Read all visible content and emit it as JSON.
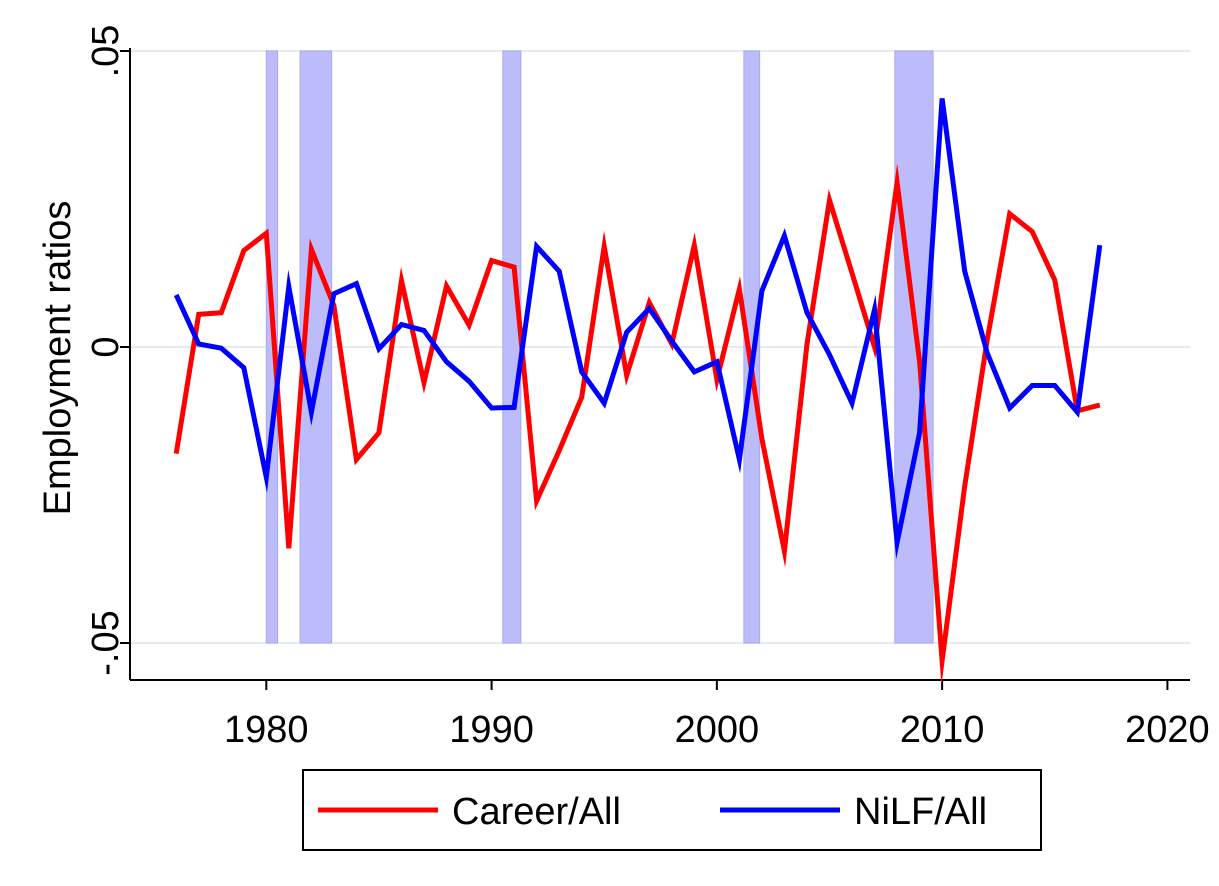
{
  "chart_data": {
    "type": "line",
    "title": "",
    "xlabel": "",
    "ylabel": "Employment ratios",
    "xlim": [
      1976,
      2020
    ],
    "ylim": [
      -0.05,
      0.05
    ],
    "x_ticks": [
      1980,
      1990,
      2000,
      2010,
      2020
    ],
    "x_tick_labels": [
      "1980",
      "1990",
      "2000",
      "2010",
      "2020"
    ],
    "y_ticks": [
      -0.05,
      0,
      0.05
    ],
    "y_tick_labels": [
      "-.05",
      "0",
      ".05"
    ],
    "grid": "horizontal",
    "legend_position": "bottom",
    "recession_color": "#bcbcfa",
    "recessions": [
      [
        1980.0,
        1980.5
      ],
      [
        1981.5,
        1982.9
      ],
      [
        1990.5,
        1991.3
      ],
      [
        2001.2,
        2001.9
      ],
      [
        2007.9,
        2009.6
      ]
    ],
    "x": [
      1976,
      1977,
      1978,
      1979,
      1980,
      1981,
      1982,
      1983,
      1984,
      1985,
      1986,
      1987,
      1988,
      1989,
      1990,
      1991,
      1992,
      1993,
      1994,
      1995,
      1996,
      1997,
      1998,
      1999,
      2000,
      2001,
      2002,
      2003,
      2004,
      2005,
      2006,
      2007,
      2008,
      2009,
      2010,
      2011,
      2012,
      2013,
      2014,
      2015,
      2016,
      2017
    ],
    "series": [
      {
        "name": "Career/All",
        "color": "#ff0000",
        "values": [
          -0.018,
          0.0055,
          0.0058,
          0.0163,
          0.0192,
          -0.034,
          0.0165,
          0.007,
          -0.019,
          -0.0145,
          0.0112,
          -0.006,
          0.0103,
          0.0037,
          0.0146,
          0.0135,
          -0.026,
          -0.0175,
          -0.0085,
          0.017,
          -0.0048,
          0.0075,
          0.0005,
          0.0172,
          -0.0055,
          0.0098,
          -0.0155,
          -0.0345,
          0.0005,
          0.0248,
          0.0125,
          0,
          0.0278,
          -0.0025,
          -0.053,
          -0.0235,
          0.0012,
          0.0225,
          0.0195,
          0.0113,
          -0.0108,
          -0.0098
        ]
      },
      {
        "name": "NiLF/All",
        "color": "#0000ff",
        "values": [
          0.0088,
          0.0005,
          -0.0002,
          -0.0035,
          -0.022,
          0.0102,
          -0.011,
          0.009,
          0.0107,
          -0.0003,
          0.0038,
          0.0028,
          -0.0025,
          -0.0058,
          -0.0103,
          -0.0102,
          0.017,
          0.0128,
          -0.0042,
          -0.0095,
          0.0025,
          0.0065,
          0.001,
          -0.0042,
          -0.0025,
          -0.019,
          0.0095,
          0.0188,
          0.0058,
          -0.0013,
          -0.0095,
          0.0063,
          -0.033,
          -0.0145,
          0.042,
          0.0128,
          -0.001,
          -0.0103,
          -0.0065,
          -0.0065,
          -0.011,
          0.0172
        ]
      }
    ]
  }
}
